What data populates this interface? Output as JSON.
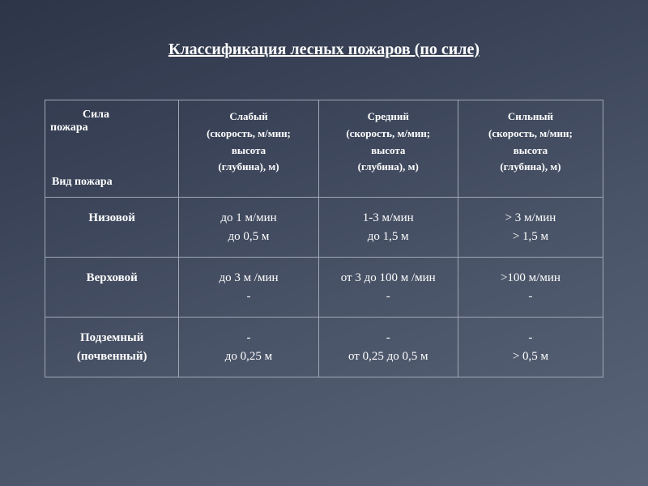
{
  "title": "Классификация лесных пожаров (по силе)",
  "header": {
    "top_label": "Сила",
    "top_label2": "пожара",
    "bottom_label": "Вид пожара",
    "cols": [
      {
        "name": "Слабый",
        "l1": "(скорость, м/мин;",
        "l2": "высота",
        "l3": "(глубина), м)"
      },
      {
        "name": "Средний",
        "l1": "(скорость, м/мин;",
        "l2": "высота",
        "l3": "(глубина), м)"
      },
      {
        "name": "Сильный",
        "l1": "(скорость, м/мин;",
        "l2": "высота",
        "l3": "(глубина), м)"
      }
    ]
  },
  "rows": [
    {
      "label1": "Низовой",
      "label2": "",
      "c": [
        {
          "v1": "до 1 м/мин",
          "v2": "до 0,5 м"
        },
        {
          "v1": "1-3 м/мин",
          "v2": "до 1,5 м"
        },
        {
          "v1": "> 3 м/мин",
          "v2": "> 1,5 м"
        }
      ]
    },
    {
      "label1": "Верховой",
      "label2": "",
      "c": [
        {
          "v1": "до 3 м /мин",
          "v2": "-"
        },
        {
          "v1": "от 3 до 100 м /мин",
          "v2": "-"
        },
        {
          "v1": ">100 м/мин",
          "v2": "-"
        }
      ]
    },
    {
      "label1": "Подземный",
      "label2": "(почвенный)",
      "c": [
        {
          "v1": "-",
          "v2": "до 0,25 м"
        },
        {
          "v1": "-",
          "v2": "от 0,25 до 0,5 м"
        },
        {
          "v1": "-",
          "v2": "> 0,5 м"
        }
      ]
    }
  ],
  "style": {
    "border_color": "#a0a8b8",
    "text_color": "#ffffff",
    "title_fontsize": 20,
    "body_fontsize": 14
  }
}
